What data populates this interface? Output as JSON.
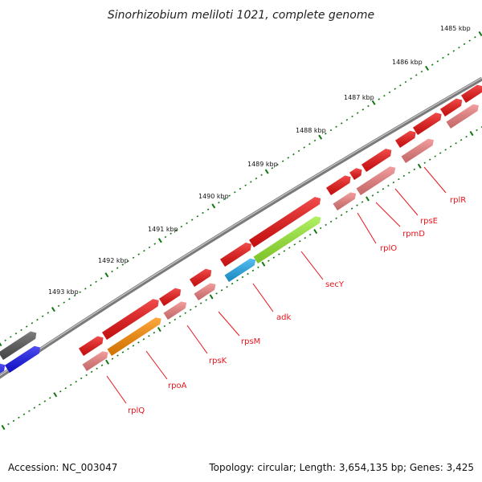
{
  "title": "Sinorhizobium meliloti 1021, complete genome",
  "footer": {
    "accession": "Accession: NC_003047",
    "summary": "Topology: circular; Length: 3,654,135 bp; Genes: 3,425"
  },
  "kbp_labels": [
    "1485 kbp",
    "1486 kbp",
    "1487 kbp",
    "1488 kbp",
    "1489 kbp",
    "1490 kbp",
    "1491 kbp",
    "1492 kbp",
    "1493 kbp"
  ],
  "gene_labels": [
    "rplR",
    "rpsE",
    "rpmD",
    "rplO",
    "secY",
    "adk",
    "rpsM",
    "rpsK",
    "rpoA",
    "rplQ"
  ],
  "colors": {
    "backbone": "#7a7a7a",
    "gene_red": "#ee1111",
    "gene_pink": "#f08080",
    "orange": "#ff8c00",
    "lime": "#99ee33",
    "cyan": "#22aaee",
    "blue": "#1515ee",
    "gray": "#555555",
    "tick": "#117711"
  }
}
